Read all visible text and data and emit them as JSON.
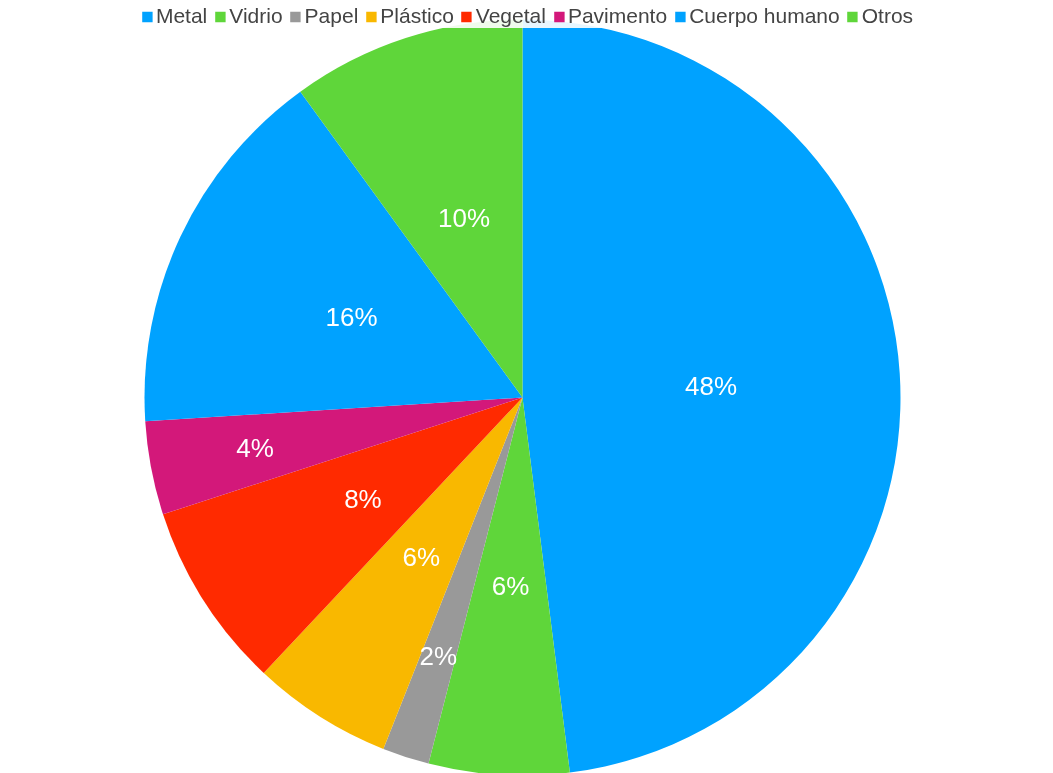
{
  "chart_data": {
    "type": "pie",
    "categories": [
      "Metal",
      "Vidrio",
      "Papel",
      "Plástico",
      "Vegetal",
      "Pavimento",
      "Cuerpo humano",
      "Otros"
    ],
    "values": [
      48,
      6,
      2,
      6,
      8,
      4,
      16,
      10
    ],
    "colors": [
      "#00a2ff",
      "#5fd63a",
      "#999999",
      "#f9b800",
      "#ff2a00",
      "#d3187a",
      "#00a2ff",
      "#5fd63a"
    ],
    "value_labels": [
      "48%",
      "6%",
      "2%",
      "6%",
      "8%",
      "4%",
      "16%",
      "10%"
    ],
    "legend": "top"
  }
}
